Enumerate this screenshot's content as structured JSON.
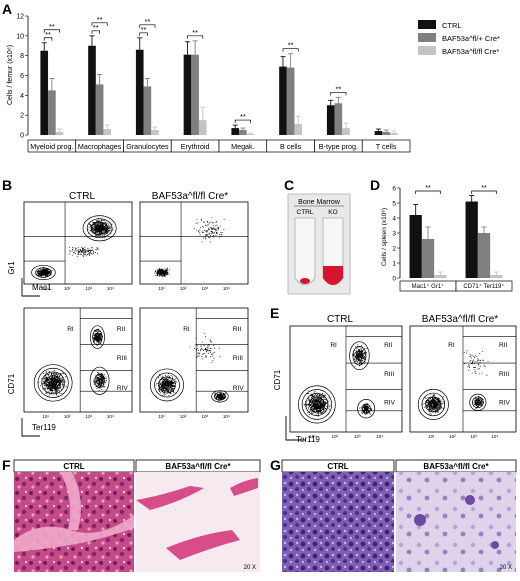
{
  "panels": {
    "A": "A",
    "B": "B",
    "C": "C",
    "D": "D",
    "E": "E",
    "F": "F",
    "G": "G"
  },
  "colors": {
    "ctrl": "#111111",
    "flox_het": "#808080",
    "flox_hom": "#c4c4c4",
    "blood": "#d6142d",
    "he_pink": "#d9669a",
    "giemsa": "#5b3a94"
  },
  "panelA": {
    "ylabel": "Cells / femur (x10⁶)",
    "sig": "**",
    "legend": [
      "CTRL",
      "BAF53a^fl/+ Cre*",
      "BAF53a^fl/fl Cre*"
    ]
  },
  "panelB": {
    "ctrl_title": "CTRL",
    "ko_title": "BAF53a^fl/fl Cre*",
    "top_y": "Gr1",
    "top_x": "Mac1",
    "bot_y": "CD71",
    "bot_x": "Ter119",
    "regions": [
      "RI",
      "RII",
      "RIII",
      "RIV"
    ]
  },
  "panelC": {
    "title": "Bone Marrow",
    "ctrl": "CTRL",
    "ko": "KO"
  },
  "panelD": {
    "ylabel": "Cells / spleen (x10⁶)",
    "sig": "**"
  },
  "panelE": {
    "ctrl_title": "CTRL",
    "ko_title": "BAF53a^fl/fl Cre*",
    "y": "CD71",
    "x": "Ter119",
    "regions": [
      "RI",
      "RII",
      "RIII",
      "RIV"
    ]
  },
  "panelF": {
    "ctrl": "CTRL",
    "ko": "BAF53a^fl/fl Cre*",
    "mag": "20 X"
  },
  "panelG": {
    "ctrl": "CTRL",
    "ko": "BAF53a^fl/fl Cre*",
    "mag": "20 X"
  },
  "chart_data": [
    {
      "type": "bar",
      "panel": "A",
      "ylabel": "Cells / femur (x10⁶)",
      "ylim": [
        0,
        12
      ],
      "yticks": [
        0,
        2,
        4,
        6,
        8,
        10,
        12
      ],
      "categories": [
        "Myeloid prog.",
        "Macrophages",
        "Granulocytes",
        "Erythroid",
        "Megak.",
        "B cells",
        "B-type prog.",
        "T cells"
      ],
      "series": [
        {
          "name": "CTRL",
          "values": [
            8.5,
            9.0,
            8.6,
            8.1,
            0.7,
            6.9,
            3.0,
            0.4
          ],
          "errors": [
            0.8,
            1.0,
            1.2,
            1.3,
            0.3,
            1.0,
            0.5,
            0.2
          ]
        },
        {
          "name": "BAF53a^fl/+ Cre*",
          "values": [
            4.5,
            5.1,
            4.9,
            8.1,
            0.5,
            6.8,
            3.2,
            0.3
          ],
          "errors": [
            1.2,
            1.0,
            0.8,
            1.4,
            0.2,
            1.4,
            0.6,
            0.2
          ]
        },
        {
          "name": "BAF53a^fl/fl Cre*",
          "values": [
            0.3,
            0.6,
            0.5,
            1.5,
            0.1,
            1.1,
            0.7,
            0.2
          ],
          "errors": [
            0.3,
            0.4,
            0.3,
            1.3,
            0.1,
            0.8,
            0.5,
            0.2
          ]
        }
      ],
      "legend": "top-right"
    },
    {
      "type": "bar",
      "panel": "D",
      "ylabel": "Cells / spleen (x10⁶)",
      "ylim": [
        0,
        6
      ],
      "yticks": [
        0,
        1,
        2,
        3,
        4,
        5,
        6
      ],
      "categories": [
        "Mac1⁺ Gr1⁺",
        "CD71⁺ Ter119⁺"
      ],
      "series": [
        {
          "name": "CTRL",
          "values": [
            4.2,
            5.1
          ],
          "errors": [
            0.7,
            0.4
          ]
        },
        {
          "name": "BAF53a^fl/+ Cre*",
          "values": [
            2.6,
            3.0
          ],
          "errors": [
            0.8,
            0.4
          ]
        },
        {
          "name": "BAF53a^fl/fl Cre*",
          "values": [
            0.2,
            0.2
          ],
          "errors": [
            0.2,
            0.2
          ]
        }
      ]
    }
  ]
}
